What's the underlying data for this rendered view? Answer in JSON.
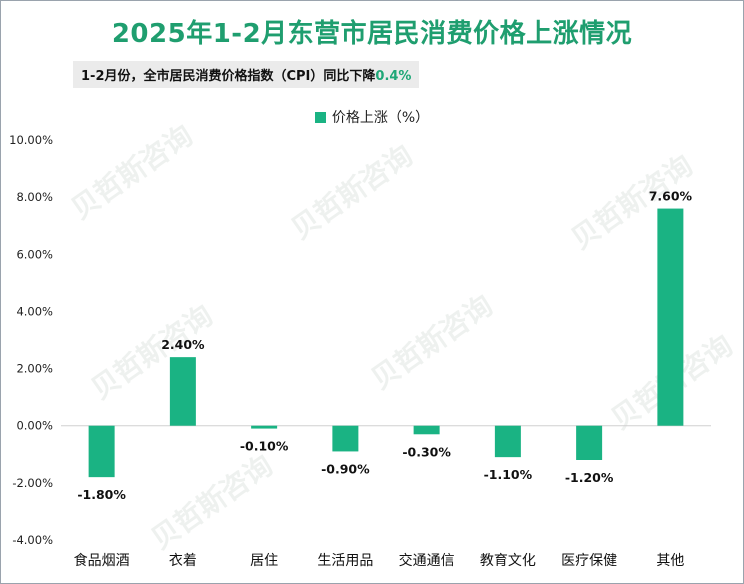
{
  "title": "2025年1-2月东营市居民消费价格上涨情况",
  "subtitle": {
    "prefix": "1-2月份，全市居民消费价格指数（CPI）同比下降",
    "highlight": "0.4%"
  },
  "watermark": "贝哲斯咨询",
  "colors": {
    "bar": "#1ab383",
    "title": "#1f9e6f",
    "highlight": "#1fa777"
  },
  "chart_data": {
    "type": "bar",
    "categories": [
      "食品烟酒",
      "衣着",
      "居住",
      "生活用品",
      "交通通信",
      "教育文化",
      "医疗保健",
      "其他"
    ],
    "series": [
      {
        "name": "价格上涨（%）",
        "values": [
          -1.8,
          2.4,
          -0.1,
          -0.9,
          -0.3,
          -1.1,
          -1.2,
          7.6
        ],
        "labels": [
          "-1.80%",
          "2.40%",
          "-0.10%",
          "-0.90%",
          "-0.30%",
          "-1.10%",
          "-1.20%",
          "7.60%"
        ]
      }
    ],
    "ylim": [
      -4,
      10
    ],
    "yticks": [
      -4,
      -2,
      0,
      2,
      4,
      6,
      8,
      10
    ],
    "ytick_labels": [
      "-4.00%",
      "-2.00%",
      "0.00%",
      "2.00%",
      "4.00%",
      "6.00%",
      "8.00%",
      "10.00%"
    ],
    "grid": false,
    "legend_position": "top-center"
  }
}
